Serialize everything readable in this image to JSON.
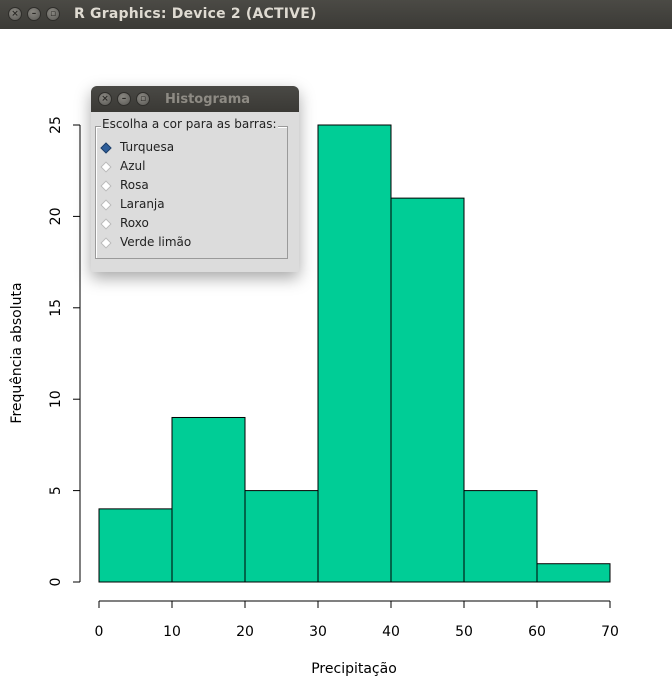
{
  "window": {
    "title": "R Graphics: Device 2 (ACTIVE)"
  },
  "dialog": {
    "title": "Histograma",
    "group_label": "Escolha a cor para as barras:",
    "options": [
      {
        "label": "Turquesa",
        "selected": true
      },
      {
        "label": "Azul",
        "selected": false
      },
      {
        "label": "Rosa",
        "selected": false
      },
      {
        "label": "Laranja",
        "selected": false
      },
      {
        "label": "Roxo",
        "selected": false
      },
      {
        "label": "Verde limão",
        "selected": false
      }
    ]
  },
  "chart_data": {
    "type": "bar",
    "title": "",
    "xlabel": "Precipitação",
    "ylabel": "Frequência absoluta",
    "bins": [
      {
        "from": 0,
        "to": 10,
        "count": 4
      },
      {
        "from": 10,
        "to": 20,
        "count": 9
      },
      {
        "from": 20,
        "to": 30,
        "count": 5
      },
      {
        "from": 30,
        "to": 40,
        "count": 25
      },
      {
        "from": 40,
        "to": 50,
        "count": 21
      },
      {
        "from": 50,
        "to": 60,
        "count": 5
      },
      {
        "from": 60,
        "to": 70,
        "count": 1
      }
    ],
    "x_ticks": [
      "0",
      "10",
      "20",
      "30",
      "40",
      "50",
      "60",
      "70"
    ],
    "y_ticks": [
      "0",
      "5",
      "10",
      "15",
      "20",
      "25"
    ],
    "xlim": [
      0,
      70
    ],
    "ylim": [
      0,
      25
    ],
    "grid": false,
    "bar_color": "#00cd96"
  }
}
